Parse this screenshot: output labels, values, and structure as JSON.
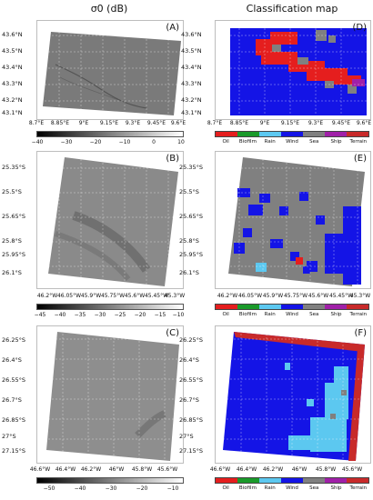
{
  "titles": {
    "left": "σ0 (dB)",
    "right": "Classification map"
  },
  "colors": {
    "Oil": "#e51e1e",
    "Biofilm": "#1a9a2a",
    "Rain": "#5cc8f0",
    "Wind": "#1414e6",
    "Sea": "#808080",
    "Ship": "#a020a8",
    "Terrain": "#c82a2a"
  },
  "legend": [
    "Oil",
    "Biofilm",
    "Rain",
    "Wind",
    "Sea",
    "Ship",
    "Terrain"
  ],
  "rows": [
    {
      "left_label": "(A)",
      "right_label": "(D)",
      "lat_labels": [
        "43.6°N",
        "43.5°N",
        "43.4°N",
        "43.3°N",
        "43.2°N",
        "43.1°N"
      ],
      "lon_labels": [
        "8.7°E",
        "8.85°E",
        "9°E",
        "9.15°E",
        "9.3°E",
        "9.45°E",
        "9.6°E"
      ],
      "cbar_ticks": [
        "−40",
        "−30",
        "−20",
        "−10",
        "0",
        "10"
      ]
    },
    {
      "left_label": "(B)",
      "right_label": "(E)",
      "lat_labels": [
        "25.35°S",
        "25.5°S",
        "25.65°S",
        "25.8°S",
        "25.95°S",
        "26.1°S"
      ],
      "lon_labels": [
        "46.2°W",
        "46.05°W",
        "45.9°W",
        "45.75°W",
        "45.6°W",
        "45.45°W",
        "45.3°W"
      ],
      "cbar_ticks": [
        "−45",
        "−40",
        "−35",
        "−30",
        "−25",
        "−20",
        "−15",
        "−10"
      ]
    },
    {
      "left_label": "(C)",
      "right_label": "(F)",
      "lat_labels": [
        "26.25°S",
        "26.4°S",
        "26.55°S",
        "26.7°S",
        "26.85°S",
        "27°S",
        "27.15°S"
      ],
      "lon_labels": [
        "46.6°W",
        "46.4°W",
        "46.2°W",
        "46°W",
        "45.8°W",
        "45.6°W"
      ],
      "cbar_ticks": [
        "−50",
        "−40",
        "−30",
        "−20",
        "−10"
      ]
    }
  ]
}
